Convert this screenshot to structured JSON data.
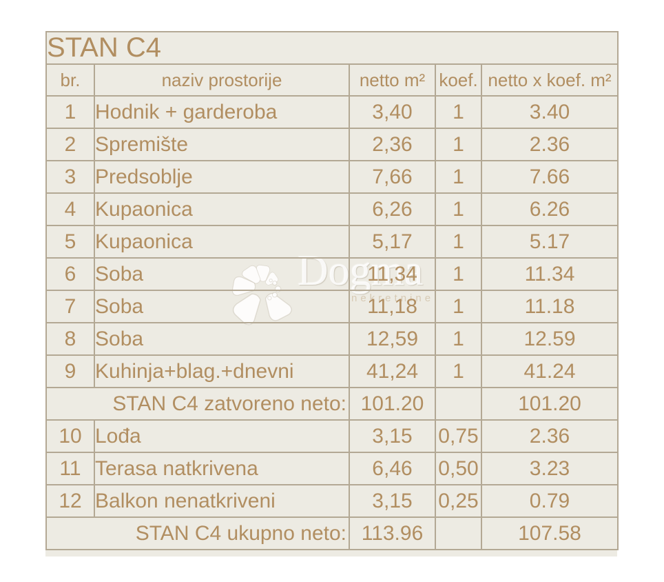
{
  "colors": {
    "page_bg": "#ffffff",
    "table_bg": "#edebe3",
    "text": "#b18e61",
    "grid_line": "#b3a894",
    "total_box_border": "#aa8751"
  },
  "table": {
    "title": "STAN C4",
    "columns": [
      "br.",
      "naziv prostorije",
      "netto m²",
      "koef.",
      "netto x koef. m²"
    ],
    "rows": [
      {
        "kind": "data",
        "br": "1",
        "naziv": "Hodnik + garderoba",
        "netto": "3,40",
        "koef": "1",
        "netto_x_koef": "3.40"
      },
      {
        "kind": "data",
        "br": "2",
        "naziv": "Spremište",
        "netto": "2,36",
        "koef": "1",
        "netto_x_koef": "2.36"
      },
      {
        "kind": "data",
        "br": "3",
        "naziv": "Predsoblje",
        "netto": "7,66",
        "koef": "1",
        "netto_x_koef": "7.66"
      },
      {
        "kind": "data",
        "br": "4",
        "naziv": "Kupaonica",
        "netto": "6,26",
        "koef": "1",
        "netto_x_koef": "6.26"
      },
      {
        "kind": "data",
        "br": "5",
        "naziv": "Kupaonica",
        "netto": "5,17",
        "koef": "1",
        "netto_x_koef": "5.17"
      },
      {
        "kind": "data",
        "br": "6",
        "naziv": "Soba",
        "netto": "11,34",
        "koef": "1",
        "netto_x_koef": "11.34"
      },
      {
        "kind": "data",
        "br": "7",
        "naziv": "Soba",
        "netto": "11,18",
        "koef": "1",
        "netto_x_koef": "11.18"
      },
      {
        "kind": "data",
        "br": "8",
        "naziv": "Soba",
        "netto": "12,59",
        "koef": "1",
        "netto_x_koef": "12.59"
      },
      {
        "kind": "data",
        "br": "9",
        "naziv": "Kuhinja+blag.+dnevni",
        "netto": "41,24",
        "koef": "1",
        "netto_x_koef": "41.24"
      },
      {
        "kind": "summary",
        "label": "STAN C4 zatvoreno neto:",
        "netto": "101.20",
        "koef": "",
        "netto_x_koef": "101.20"
      },
      {
        "kind": "data",
        "br": "10",
        "naziv": "Lođa",
        "netto": "3,15",
        "koef": "0,75",
        "netto_x_koef": "2.36"
      },
      {
        "kind": "data",
        "br": "11",
        "naziv": "Terasa natkrivena",
        "netto": "6,46",
        "koef": "0,50",
        "netto_x_koef": "3.23"
      },
      {
        "kind": "data",
        "br": "12",
        "naziv": "Balkon nenatkriveni",
        "netto": "3,15",
        "koef": "0,25",
        "netto_x_koef": "0.79"
      },
      {
        "kind": "summary",
        "label": "STAN C4 ukupno neto:",
        "netto": "113.96",
        "koef": "",
        "netto_x_koef": "107.58"
      }
    ]
  },
  "watermark": {
    "brand": "Dogma",
    "subtitle": "nekretnine"
  }
}
